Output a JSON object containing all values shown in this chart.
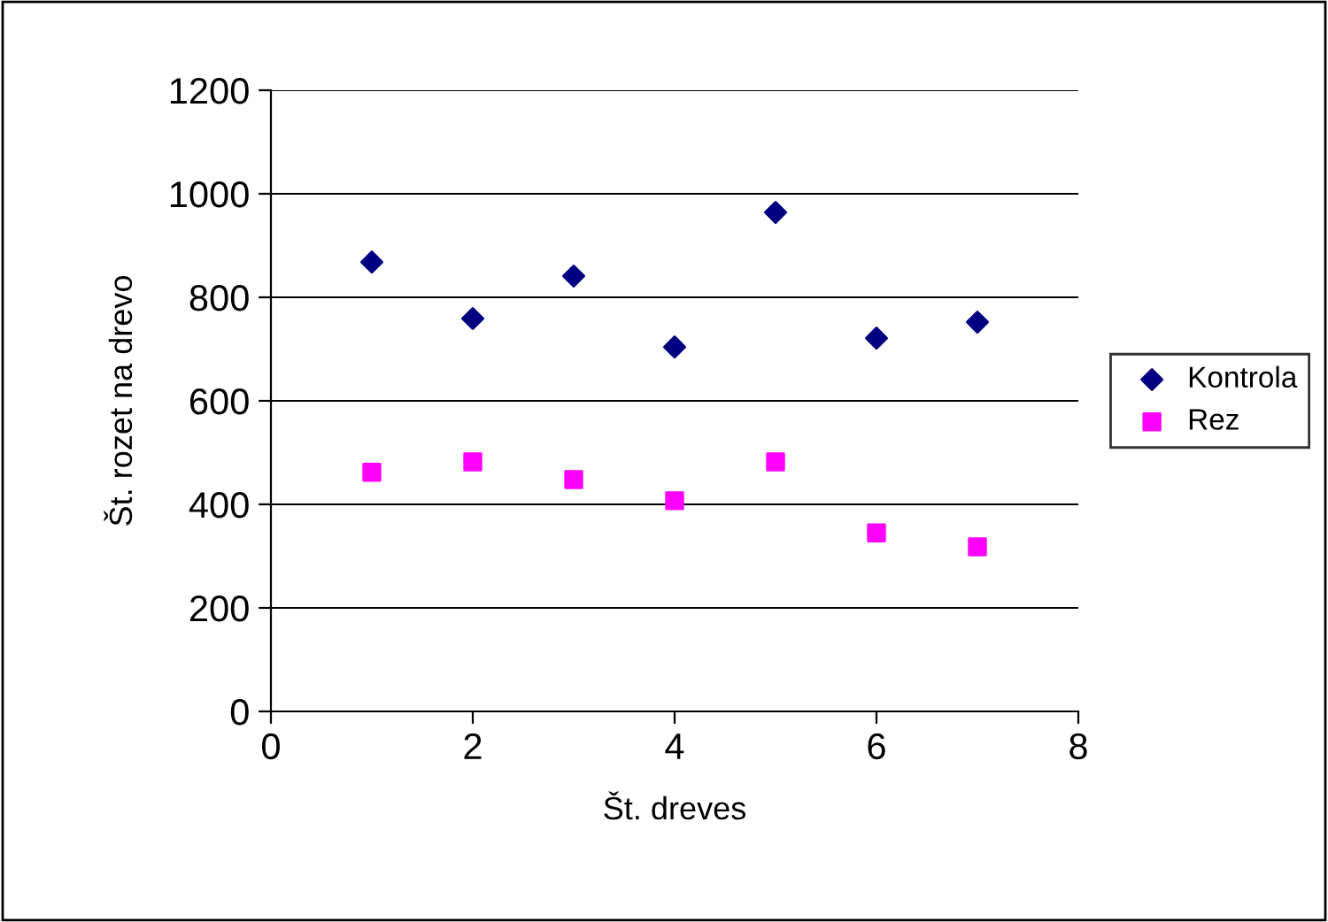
{
  "chart_data": {
    "type": "scatter",
    "xlabel": "Št. dreves",
    "ylabel": "Št. rozet na drevo",
    "x": [
      1,
      2,
      3,
      4,
      5,
      6,
      7
    ],
    "series": [
      {
        "name": "Kontrola",
        "color": "#000080",
        "marker": "diamond",
        "values": [
          868,
          759,
          841,
          704,
          964,
          721,
          752
        ]
      },
      {
        "name": "Rez",
        "color": "#ff00ff",
        "marker": "square",
        "values": [
          462,
          482,
          448,
          407,
          482,
          345,
          318
        ]
      }
    ],
    "xlim": [
      0,
      8
    ],
    "xticks": [
      0,
      2,
      4,
      6,
      8
    ],
    "ylim": [
      0,
      1200
    ],
    "yticks": [
      0,
      200,
      400,
      600,
      800,
      1000,
      1200
    ],
    "grid": "y",
    "legend": "right"
  }
}
